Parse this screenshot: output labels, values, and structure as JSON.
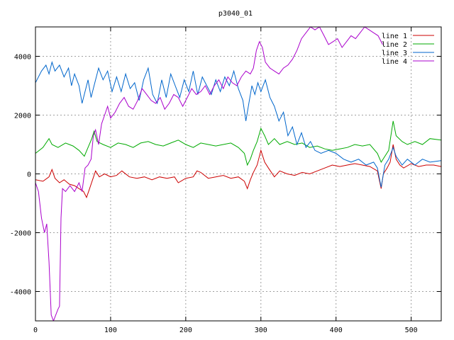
{
  "chart_data": {
    "type": "line",
    "title": "p3040_01",
    "xlabel": "",
    "ylabel": "",
    "xlim": [
      0,
      540
    ],
    "ylim": [
      -5000,
      5000
    ],
    "xticks": [
      0,
      100,
      200,
      300,
      400,
      500
    ],
    "yticks": [
      -4000,
      -2000,
      0,
      2000,
      4000
    ],
    "grid": true,
    "legend_position": "top-right",
    "series": [
      {
        "name": "line 1",
        "color": "#cc0000",
        "points": [
          [
            0,
            -200
          ],
          [
            10,
            -250
          ],
          [
            18,
            -100
          ],
          [
            22,
            150
          ],
          [
            26,
            -150
          ],
          [
            32,
            -300
          ],
          [
            38,
            -200
          ],
          [
            45,
            -350
          ],
          [
            52,
            -400
          ],
          [
            58,
            -500
          ],
          [
            64,
            -600
          ],
          [
            68,
            -800
          ],
          [
            72,
            -500
          ],
          [
            76,
            -200
          ],
          [
            80,
            100
          ],
          [
            85,
            -100
          ],
          [
            92,
            0
          ],
          [
            100,
            -100
          ],
          [
            108,
            -50
          ],
          [
            115,
            100
          ],
          [
            125,
            -100
          ],
          [
            135,
            -150
          ],
          [
            145,
            -100
          ],
          [
            155,
            -200
          ],
          [
            165,
            -100
          ],
          [
            175,
            -150
          ],
          [
            185,
            -100
          ],
          [
            190,
            -300
          ],
          [
            200,
            -150
          ],
          [
            210,
            -100
          ],
          [
            215,
            100
          ],
          [
            220,
            50
          ],
          [
            230,
            -150
          ],
          [
            240,
            -100
          ],
          [
            250,
            -50
          ],
          [
            260,
            -150
          ],
          [
            270,
            -100
          ],
          [
            278,
            -250
          ],
          [
            282,
            -500
          ],
          [
            286,
            -200
          ],
          [
            290,
            50
          ],
          [
            295,
            300
          ],
          [
            300,
            800
          ],
          [
            305,
            400
          ],
          [
            310,
            200
          ],
          [
            318,
            -100
          ],
          [
            325,
            100
          ],
          [
            335,
            0
          ],
          [
            345,
            -50
          ],
          [
            355,
            50
          ],
          [
            365,
            0
          ],
          [
            375,
            100
          ],
          [
            385,
            200
          ],
          [
            395,
            300
          ],
          [
            405,
            250
          ],
          [
            415,
            300
          ],
          [
            425,
            350
          ],
          [
            435,
            300
          ],
          [
            445,
            250
          ],
          [
            455,
            100
          ],
          [
            460,
            -500
          ],
          [
            463,
            0
          ],
          [
            468,
            200
          ],
          [
            472,
            400
          ],
          [
            476,
            1000
          ],
          [
            480,
            500
          ],
          [
            485,
            300
          ],
          [
            490,
            200
          ],
          [
            500,
            350
          ],
          [
            510,
            250
          ],
          [
            520,
            300
          ],
          [
            530,
            300
          ],
          [
            540,
            250
          ]
        ]
      },
      {
        "name": "line 2",
        "color": "#00aa00",
        "points": [
          [
            0,
            700
          ],
          [
            10,
            900
          ],
          [
            18,
            1200
          ],
          [
            22,
            1000
          ],
          [
            30,
            900
          ],
          [
            40,
            1050
          ],
          [
            50,
            950
          ],
          [
            58,
            800
          ],
          [
            65,
            600
          ],
          [
            70,
            900
          ],
          [
            75,
            1200
          ],
          [
            78,
            1450
          ],
          [
            82,
            1100
          ],
          [
            90,
            1000
          ],
          [
            100,
            900
          ],
          [
            110,
            1050
          ],
          [
            120,
            1000
          ],
          [
            130,
            900
          ],
          [
            140,
            1050
          ],
          [
            150,
            1100
          ],
          [
            160,
            1000
          ],
          [
            170,
            950
          ],
          [
            180,
            1050
          ],
          [
            190,
            1150
          ],
          [
            200,
            1000
          ],
          [
            210,
            900
          ],
          [
            220,
            1050
          ],
          [
            230,
            1000
          ],
          [
            240,
            950
          ],
          [
            250,
            1000
          ],
          [
            260,
            1050
          ],
          [
            270,
            900
          ],
          [
            278,
            700
          ],
          [
            282,
            300
          ],
          [
            286,
            500
          ],
          [
            290,
            800
          ],
          [
            295,
            1100
          ],
          [
            300,
            1550
          ],
          [
            305,
            1300
          ],
          [
            310,
            1000
          ],
          [
            318,
            1200
          ],
          [
            325,
            1000
          ],
          [
            335,
            1100
          ],
          [
            345,
            1000
          ],
          [
            355,
            1050
          ],
          [
            365,
            900
          ],
          [
            375,
            950
          ],
          [
            385,
            850
          ],
          [
            395,
            800
          ],
          [
            405,
            850
          ],
          [
            415,
            900
          ],
          [
            425,
            1000
          ],
          [
            435,
            950
          ],
          [
            445,
            1000
          ],
          [
            455,
            700
          ],
          [
            460,
            400
          ],
          [
            465,
            600
          ],
          [
            470,
            800
          ],
          [
            476,
            1800
          ],
          [
            480,
            1300
          ],
          [
            488,
            1100
          ],
          [
            495,
            1000
          ],
          [
            505,
            1100
          ],
          [
            515,
            1000
          ],
          [
            525,
            1200
          ],
          [
            540,
            1150
          ]
        ]
      },
      {
        "name": "line 3",
        "color": "#0066cc",
        "points": [
          [
            0,
            3100
          ],
          [
            8,
            3500
          ],
          [
            14,
            3700
          ],
          [
            18,
            3400
          ],
          [
            22,
            3800
          ],
          [
            26,
            3500
          ],
          [
            32,
            3700
          ],
          [
            38,
            3300
          ],
          [
            44,
            3600
          ],
          [
            48,
            3000
          ],
          [
            52,
            3400
          ],
          [
            58,
            3000
          ],
          [
            62,
            2400
          ],
          [
            66,
            2800
          ],
          [
            70,
            3200
          ],
          [
            74,
            2600
          ],
          [
            78,
            3000
          ],
          [
            84,
            3600
          ],
          [
            90,
            3200
          ],
          [
            96,
            3500
          ],
          [
            102,
            2800
          ],
          [
            108,
            3300
          ],
          [
            114,
            2800
          ],
          [
            120,
            3400
          ],
          [
            126,
            2900
          ],
          [
            132,
            3100
          ],
          [
            138,
            2500
          ],
          [
            144,
            3200
          ],
          [
            150,
            3600
          ],
          [
            156,
            2700
          ],
          [
            162,
            2400
          ],
          [
            168,
            3200
          ],
          [
            174,
            2600
          ],
          [
            180,
            3400
          ],
          [
            186,
            3000
          ],
          [
            192,
            2600
          ],
          [
            198,
            3200
          ],
          [
            204,
            2800
          ],
          [
            210,
            3500
          ],
          [
            216,
            2700
          ],
          [
            222,
            3300
          ],
          [
            228,
            3000
          ],
          [
            234,
            2700
          ],
          [
            240,
            3200
          ],
          [
            246,
            2800
          ],
          [
            252,
            3300
          ],
          [
            258,
            3000
          ],
          [
            264,
            3500
          ],
          [
            270,
            2900
          ],
          [
            276,
            2500
          ],
          [
            280,
            1800
          ],
          [
            284,
            2400
          ],
          [
            288,
            3000
          ],
          [
            292,
            2700
          ],
          [
            296,
            3100
          ],
          [
            300,
            2800
          ],
          [
            306,
            3200
          ],
          [
            312,
            2600
          ],
          [
            318,
            2300
          ],
          [
            324,
            1800
          ],
          [
            330,
            2100
          ],
          [
            336,
            1300
          ],
          [
            342,
            1600
          ],
          [
            348,
            1000
          ],
          [
            354,
            1400
          ],
          [
            360,
            900
          ],
          [
            366,
            1100
          ],
          [
            372,
            800
          ],
          [
            380,
            700
          ],
          [
            390,
            800
          ],
          [
            400,
            700
          ],
          [
            410,
            500
          ],
          [
            420,
            400
          ],
          [
            430,
            500
          ],
          [
            440,
            300
          ],
          [
            450,
            400
          ],
          [
            455,
            200
          ],
          [
            460,
            -450
          ],
          [
            465,
            300
          ],
          [
            470,
            500
          ],
          [
            476,
            900
          ],
          [
            480,
            600
          ],
          [
            488,
            300
          ],
          [
            495,
            500
          ],
          [
            505,
            300
          ],
          [
            515,
            500
          ],
          [
            525,
            400
          ],
          [
            540,
            450
          ]
        ]
      },
      {
        "name": "line 4",
        "color": "#aa00cc",
        "points": [
          [
            0,
            -300
          ],
          [
            4,
            -600
          ],
          [
            8,
            -1500
          ],
          [
            12,
            -2000
          ],
          [
            15,
            -1700
          ],
          [
            18,
            -3000
          ],
          [
            21,
            -4800
          ],
          [
            24,
            -5000
          ],
          [
            27,
            -4800
          ],
          [
            30,
            -4600
          ],
          [
            32,
            -4500
          ],
          [
            34,
            -1500
          ],
          [
            36,
            -500
          ],
          [
            40,
            -600
          ],
          [
            46,
            -400
          ],
          [
            52,
            -600
          ],
          [
            58,
            -300
          ],
          [
            62,
            -600
          ],
          [
            66,
            200
          ],
          [
            70,
            300
          ],
          [
            74,
            500
          ],
          [
            77,
            1300
          ],
          [
            80,
            1500
          ],
          [
            84,
            1000
          ],
          [
            88,
            1700
          ],
          [
            92,
            2000
          ],
          [
            96,
            2300
          ],
          [
            100,
            1900
          ],
          [
            106,
            2100
          ],
          [
            112,
            2400
          ],
          [
            118,
            2600
          ],
          [
            124,
            2300
          ],
          [
            130,
            2200
          ],
          [
            136,
            2500
          ],
          [
            142,
            2900
          ],
          [
            148,
            2700
          ],
          [
            154,
            2500
          ],
          [
            160,
            2400
          ],
          [
            166,
            2600
          ],
          [
            172,
            2200
          ],
          [
            178,
            2400
          ],
          [
            184,
            2700
          ],
          [
            190,
            2600
          ],
          [
            196,
            2300
          ],
          [
            202,
            2600
          ],
          [
            208,
            2900
          ],
          [
            214,
            2700
          ],
          [
            220,
            2800
          ],
          [
            226,
            3000
          ],
          [
            232,
            2700
          ],
          [
            238,
            3000
          ],
          [
            244,
            3200
          ],
          [
            250,
            2900
          ],
          [
            256,
            3300
          ],
          [
            262,
            3100
          ],
          [
            268,
            3000
          ],
          [
            274,
            3300
          ],
          [
            280,
            3500
          ],
          [
            286,
            3400
          ],
          [
            290,
            3600
          ],
          [
            294,
            4200
          ],
          [
            298,
            4500
          ],
          [
            302,
            4300
          ],
          [
            306,
            3800
          ],
          [
            312,
            3600
          ],
          [
            318,
            3500
          ],
          [
            324,
            3400
          ],
          [
            330,
            3600
          ],
          [
            336,
            3700
          ],
          [
            342,
            3900
          ],
          [
            348,
            4200
          ],
          [
            354,
            4600
          ],
          [
            360,
            4800
          ],
          [
            366,
            5000
          ],
          [
            372,
            4900
          ],
          [
            378,
            5000
          ],
          [
            384,
            4700
          ],
          [
            390,
            4400
          ],
          [
            396,
            4500
          ],
          [
            402,
            4600
          ],
          [
            408,
            4300
          ],
          [
            414,
            4500
          ],
          [
            420,
            4700
          ],
          [
            426,
            4600
          ],
          [
            432,
            4800
          ],
          [
            438,
            5000
          ],
          [
            444,
            4900
          ],
          [
            450,
            4800
          ],
          [
            456,
            4700
          ],
          [
            462,
            4400
          ]
        ]
      }
    ]
  }
}
